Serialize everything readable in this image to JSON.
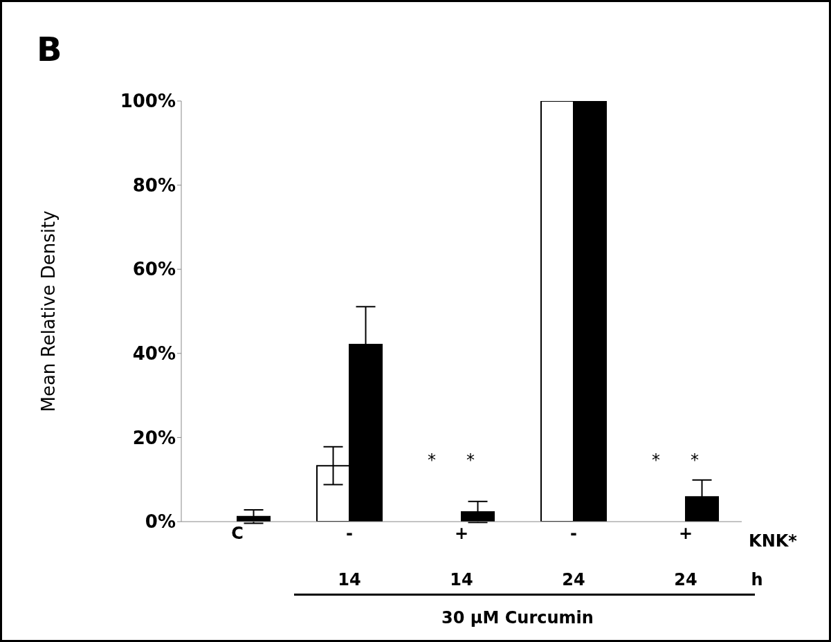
{
  "chart_data": {
    "type": "bar",
    "title": "B",
    "ylabel": "Mean Relative Density",
    "categories": [
      "C",
      "-",
      "+",
      "-",
      "+"
    ],
    "series": [
      {
        "color": "#ffffff",
        "values": [
          0,
          13.3,
          0,
          100,
          0
        ],
        "errors": [
          null,
          4.5,
          null,
          null,
          null
        ]
      },
      {
        "color": "#000000",
        "values": [
          1.2,
          42.1,
          2.3,
          100,
          5.9
        ],
        "errors": [
          1.6,
          9,
          2.5,
          null,
          4
        ]
      }
    ],
    "ylim": [
      0,
      100
    ],
    "yticks": [
      {
        "value": 0,
        "label": "0%"
      },
      {
        "value": 20,
        "label": "20%"
      },
      {
        "value": 40,
        "label": "40%"
      },
      {
        "value": 60,
        "label": "60%"
      },
      {
        "value": 80,
        "label": "80%"
      },
      {
        "value": 100,
        "label": "100%"
      }
    ],
    "grid": false,
    "legend": false,
    "annotations": [
      "KNK*",
      "14",
      "14",
      "24",
      "24",
      "h",
      "30 µM Curcumin",
      "*",
      "*",
      "*",
      "*"
    ]
  }
}
